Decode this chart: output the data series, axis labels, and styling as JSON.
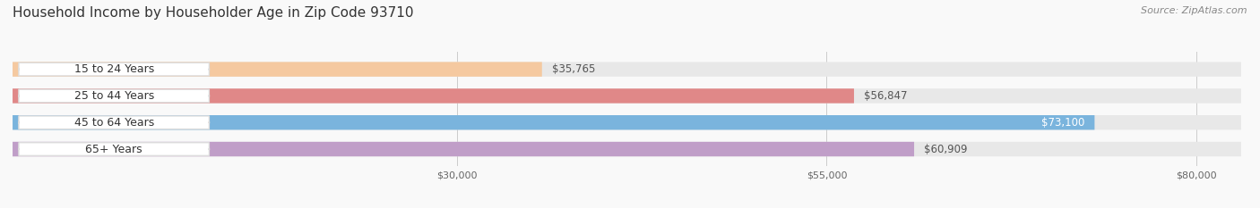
{
  "title": "Household Income by Householder Age in Zip Code 93710",
  "source": "Source: ZipAtlas.com",
  "categories": [
    "15 to 24 Years",
    "25 to 44 Years",
    "45 to 64 Years",
    "65+ Years"
  ],
  "values": [
    35765,
    56847,
    73100,
    60909
  ],
  "labels": [
    "$35,765",
    "$56,847",
    "$73,100",
    "$60,909"
  ],
  "bar_colors": [
    "#f5c9a0",
    "#e08888",
    "#7ab4dd",
    "#c09ec8"
  ],
  "track_color": "#e8e8e8",
  "xmin": 0,
  "xmax": 83000,
  "xticks": [
    30000,
    55000,
    80000
  ],
  "xticklabels": [
    "$30,000",
    "$55,000",
    "$80,000"
  ],
  "title_fontsize": 11,
  "source_fontsize": 8,
  "label_fontsize": 8.5,
  "category_fontsize": 9,
  "background_color": "#f9f9f9",
  "bar_height": 0.55,
  "label_inside_idx": 2,
  "label_inside_color": "white"
}
